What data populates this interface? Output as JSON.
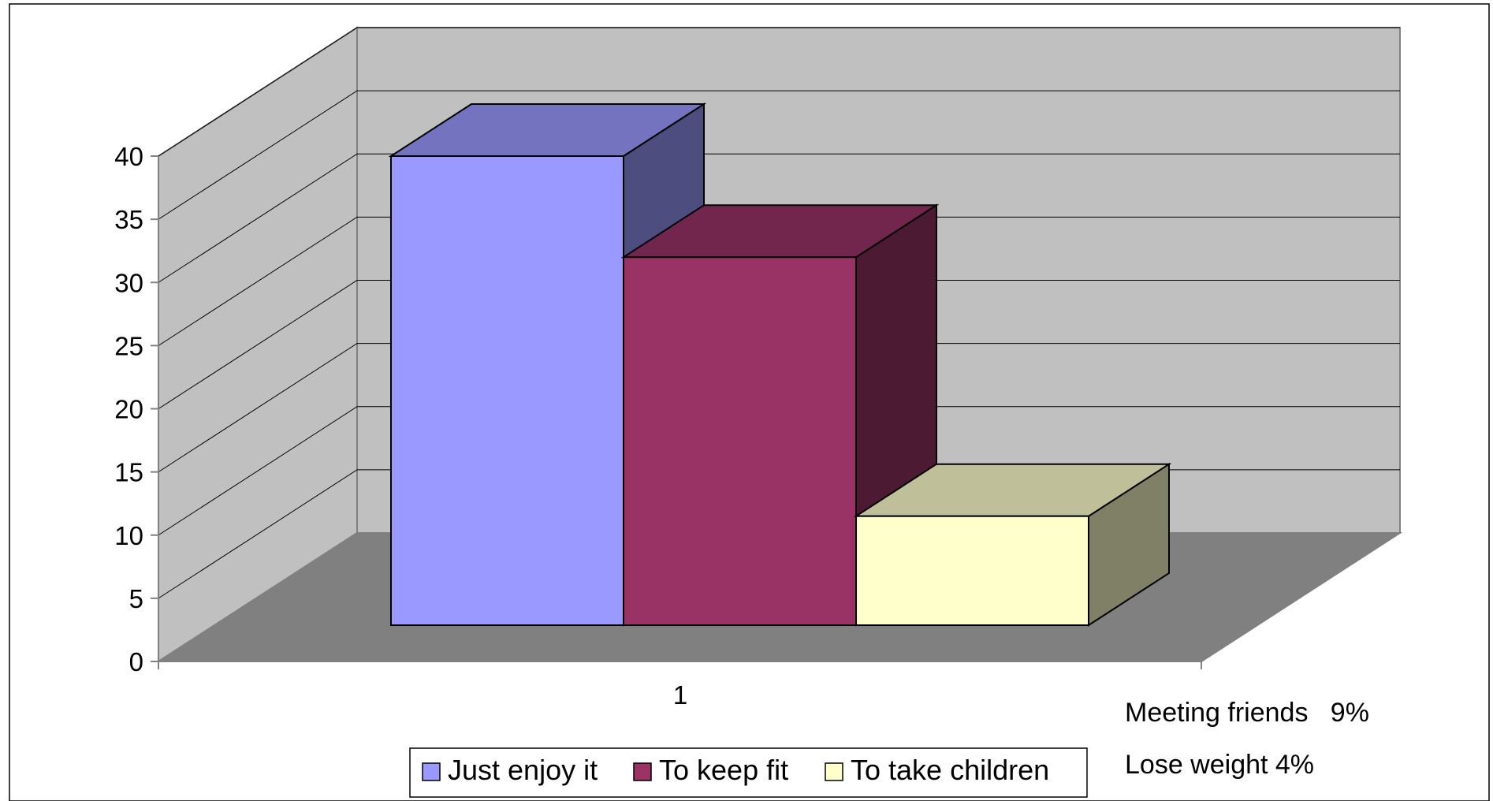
{
  "chart_data": {
    "type": "bar",
    "style": "3d-clustered-column",
    "categories": [
      "1"
    ],
    "series": [
      {
        "name": "Just enjoy it",
        "values": [
          40
        ],
        "color": "#9999ff"
      },
      {
        "name": "To keep fit",
        "values": [
          32
        ],
        "color": "#993366"
      },
      {
        "name": "To take children",
        "values": [
          11.5
        ],
        "color": "#ffffcc"
      }
    ],
    "y_ticks": [
      "0",
      "5",
      "10",
      "15",
      "20",
      "25",
      "30",
      "35",
      "40"
    ],
    "ylim": [
      0,
      40
    ],
    "grid": true,
    "legend": "bottom",
    "annotations": [
      "Meeting friends   9%",
      "Lose weight 4%"
    ],
    "colors": {
      "wall": "#c0c0c0",
      "floor": "#808080",
      "gridline": "#000000"
    }
  }
}
